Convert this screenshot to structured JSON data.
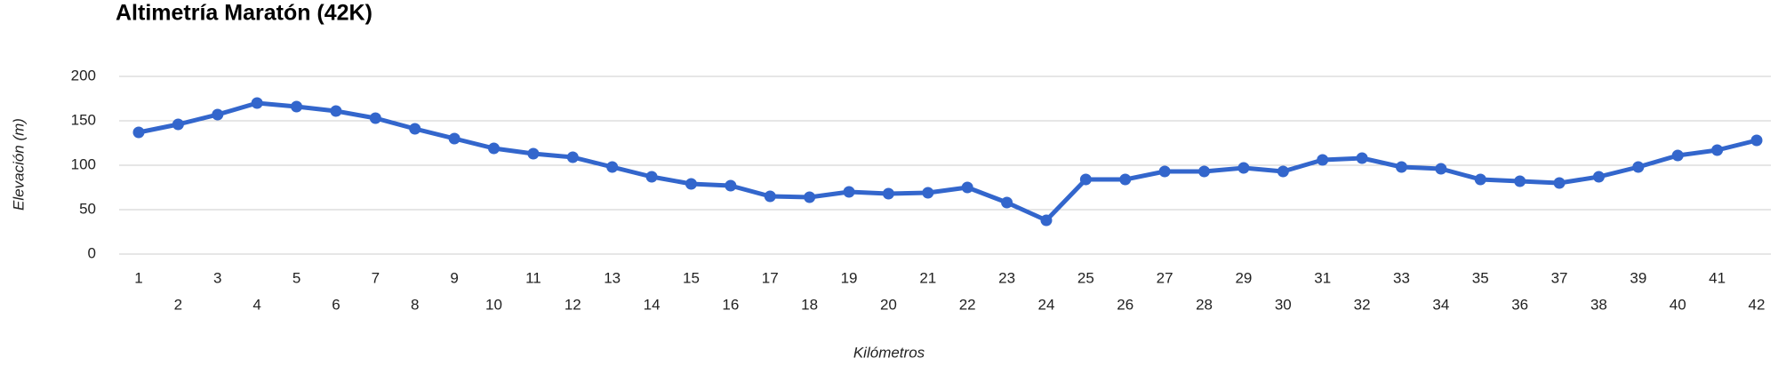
{
  "chart_data": {
    "type": "line",
    "title": "Altimetría Maratón (42K)",
    "x_label": "Kilómetros",
    "y_label": "Elevación (m)",
    "categories": [
      "1",
      "2",
      "3",
      "4",
      "5",
      "6",
      "7",
      "8",
      "9",
      "10",
      "11",
      "12",
      "13",
      "14",
      "15",
      "16",
      "17",
      "18",
      "19",
      "20",
      "21",
      "22",
      "23",
      "24",
      "25",
      "26",
      "27",
      "28",
      "29",
      "30",
      "31",
      "32",
      "33",
      "34",
      "35",
      "36",
      "37",
      "38",
      "39",
      "40",
      "41",
      "42"
    ],
    "series": [
      {
        "name": "Elevación",
        "color": "#3366cc",
        "values": [
          137,
          146,
          157,
          170,
          166,
          161,
          153,
          141,
          130,
          119,
          113,
          109,
          98,
          87,
          79,
          77,
          65,
          64,
          70,
          68,
          69,
          75,
          58,
          38,
          84,
          84,
          93,
          93,
          97,
          93,
          106,
          108,
          98,
          96,
          84,
          82,
          80,
          87,
          98,
          111,
          117,
          128
        ]
      }
    ],
    "ylim": [
      0,
      200
    ],
    "yticks": [
      0,
      50,
      100,
      150,
      200
    ],
    "grid": true
  }
}
